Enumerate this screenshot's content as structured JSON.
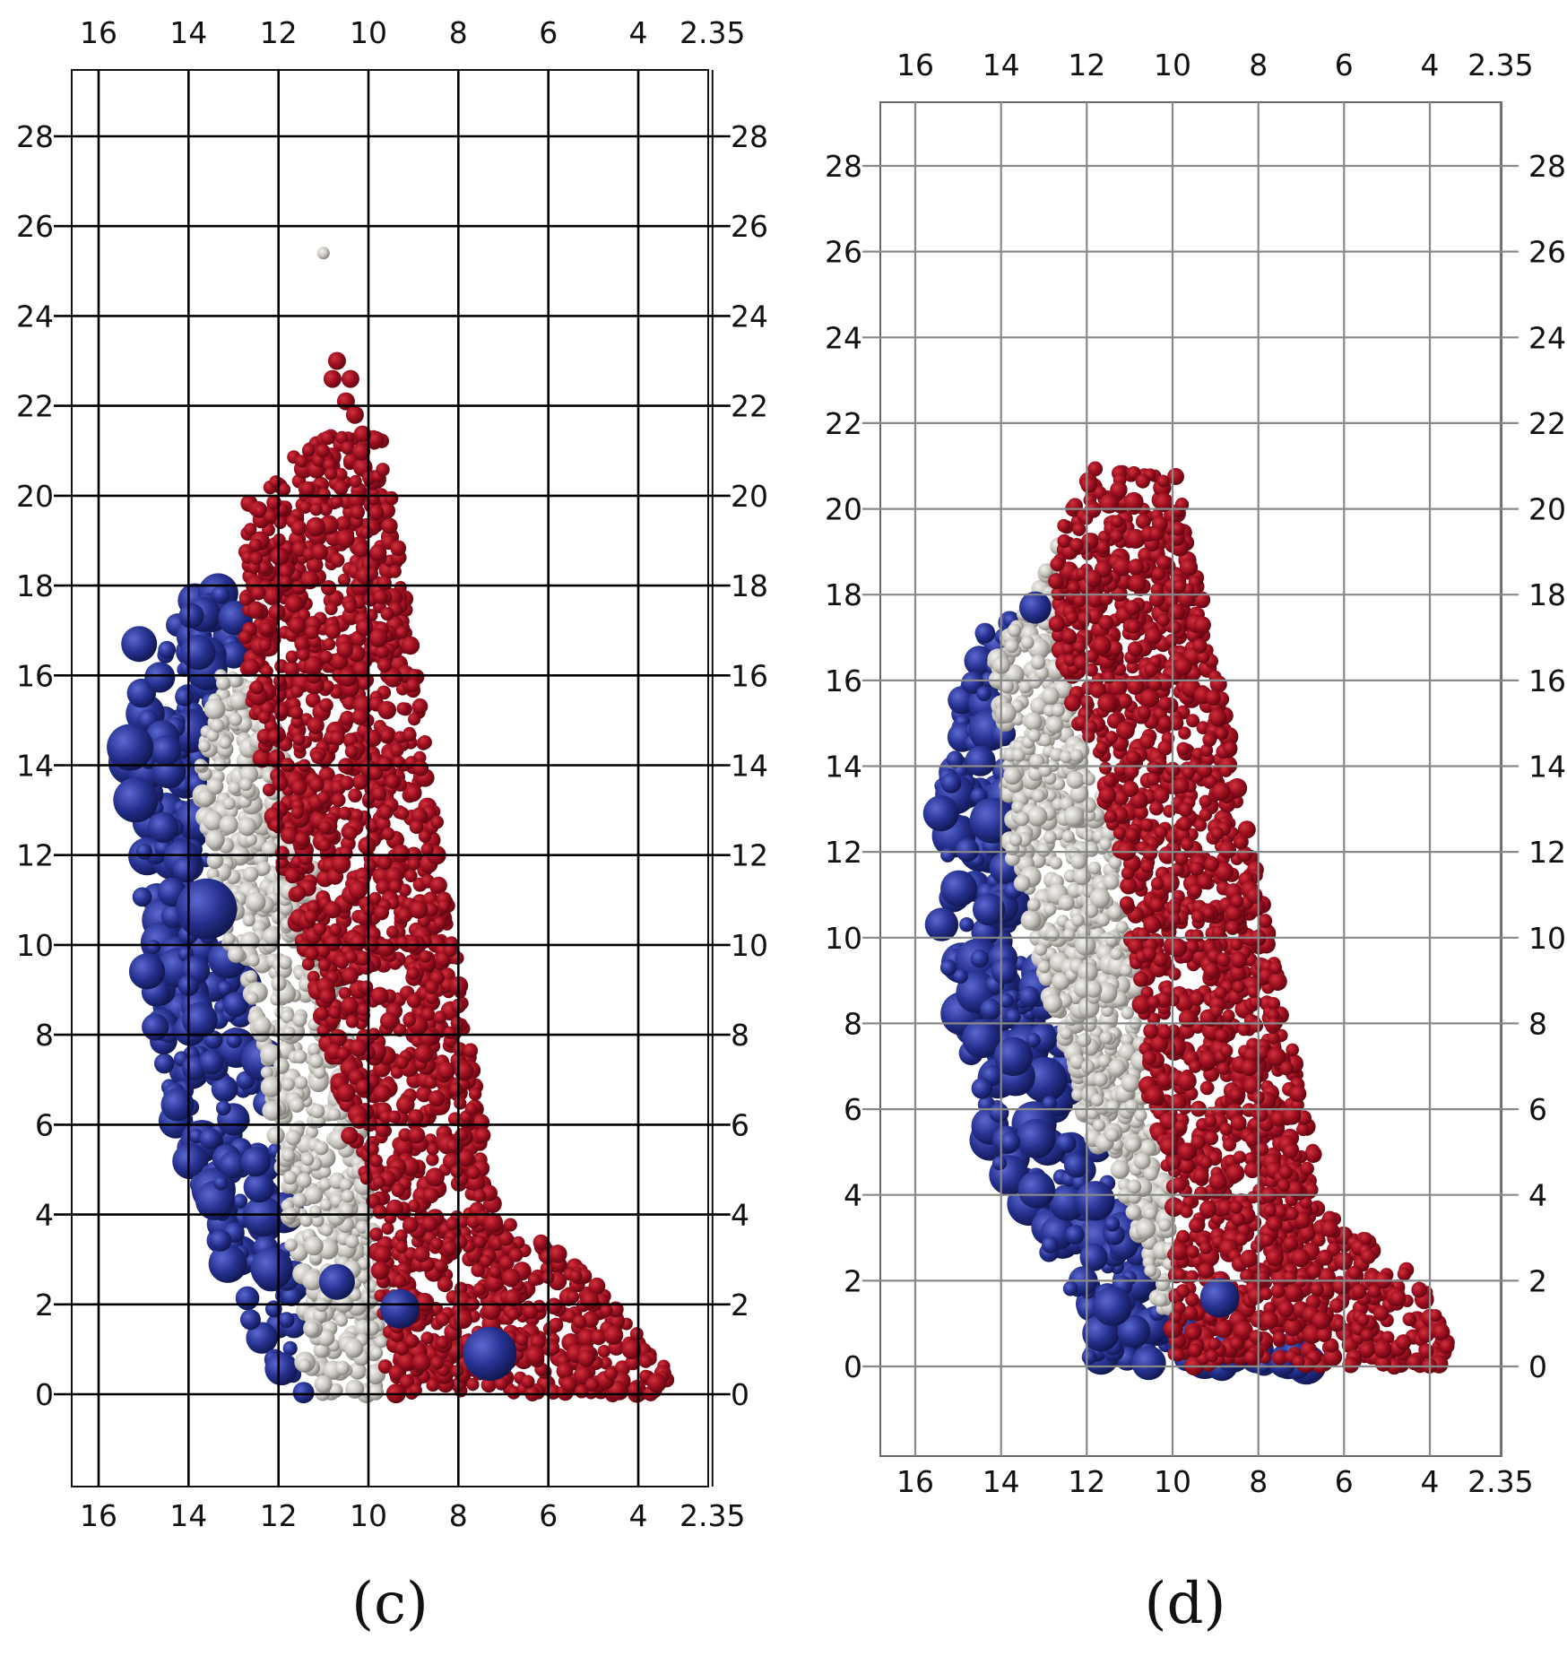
{
  "figure": {
    "panels": [
      {
        "id": "c",
        "label": "(c)",
        "x_ticks": [
          "16",
          "14",
          "12",
          "10",
          "8",
          "6",
          "4",
          "2.35"
        ],
        "y_ticks": [
          "0",
          "2",
          "4",
          "6",
          "8",
          "10",
          "12",
          "14",
          "16",
          "18",
          "20",
          "22",
          "24",
          "26",
          "28"
        ],
        "x_range": [
          2.35,
          17
        ],
        "y_range": [
          -2,
          29.5
        ],
        "grid_color": "#000000",
        "profile": {
          "red_zone": [
            [
              9.7,
              21.5
            ],
            [
              7.2,
              4
            ],
            [
              5.5,
              3
            ],
            [
              4,
              1.8
            ],
            [
              3.3,
              0.4
            ],
            [
              3.6,
              0
            ],
            [
              9.6,
              0
            ],
            [
              9.9,
              4
            ],
            [
              10.5,
              6
            ],
            [
              11,
              8
            ],
            [
              11.5,
              10
            ],
            [
              12,
              12
            ],
            [
              12.4,
              14
            ],
            [
              12.7,
              16
            ],
            [
              12.8,
              18
            ],
            [
              12.7,
              19.8
            ],
            [
              12.1,
              20.6
            ],
            [
              10.8,
              21.4
            ]
          ],
          "white_zone": [
            [
              12.3,
              16
            ],
            [
              11.8,
              14
            ],
            [
              11.2,
              12
            ],
            [
              10.9,
              10
            ],
            [
              10.5,
              8
            ],
            [
              10.1,
              6
            ],
            [
              9.9,
              4
            ],
            [
              9.6,
              2
            ],
            [
              9.7,
              0
            ],
            [
              11.4,
              0
            ],
            [
              11.6,
              2
            ],
            [
              11.8,
              4
            ],
            [
              12.4,
              8
            ],
            [
              13.1,
              10
            ],
            [
              13.6,
              12
            ],
            [
              13.8,
              14
            ],
            [
              13.3,
              16
            ]
          ],
          "blue_zone": [
            [
              13.3,
              18
            ],
            [
              12.5,
              16.5
            ],
            [
              13.3,
              16
            ],
            [
              13.8,
              14
            ],
            [
              13.6,
              12
            ],
            [
              13.1,
              10
            ],
            [
              12.4,
              8
            ],
            [
              11.8,
              4
            ],
            [
              11.6,
              2
            ],
            [
              11.4,
              0
            ],
            [
              12,
              0
            ],
            [
              12.8,
              2
            ],
            [
              13.6,
              4
            ],
            [
              14.3,
              6
            ],
            [
              14.8,
              8
            ],
            [
              15,
              10
            ],
            [
              15.1,
              12
            ],
            [
              15.3,
              14
            ],
            [
              15,
              16
            ],
            [
              14,
              18
            ]
          ]
        }
      },
      {
        "id": "d",
        "label": "(d)",
        "x_ticks": [
          "16",
          "14",
          "12",
          "10",
          "8",
          "6",
          "4",
          "2.35"
        ],
        "y_ticks": [
          "0",
          "2",
          "4",
          "6",
          "8",
          "10",
          "12",
          "14",
          "16",
          "18",
          "20",
          "22",
          "24",
          "26",
          "28"
        ],
        "x_range": [
          2.35,
          17
        ],
        "y_range": [
          -2,
          29.5
        ],
        "grid_color": "#888888",
        "profile": {
          "red_zone": [
            [
              11.8,
              21
            ],
            [
              9.9,
              20.8
            ],
            [
              6.5,
              4
            ],
            [
              5.5,
              3
            ],
            [
              4.2,
              2
            ],
            [
              3.6,
              1
            ],
            [
              3.6,
              0
            ],
            [
              10,
              0
            ],
            [
              10,
              4
            ],
            [
              10.6,
              6
            ],
            [
              10.7,
              8
            ],
            [
              11,
              10
            ],
            [
              11.2,
              12
            ],
            [
              11.9,
              14
            ],
            [
              12.5,
              16
            ],
            [
              12.8,
              18
            ],
            [
              12.6,
              19.5
            ]
          ],
          "white_zone": [
            [
              12.6,
              19.5
            ],
            [
              13.2,
              18
            ],
            [
              14.2,
              16.5
            ],
            [
              13.9,
              14.5
            ],
            [
              13.8,
              12
            ],
            [
              13.2,
              10
            ],
            [
              12.7,
              8
            ],
            [
              12.2,
              6
            ],
            [
              11.2,
              4
            ],
            [
              10.5,
              2
            ],
            [
              10.2,
              1
            ],
            [
              10,
              1
            ],
            [
              10,
              4
            ],
            [
              10.6,
              6
            ],
            [
              10.7,
              8
            ],
            [
              11,
              10
            ],
            [
              11.2,
              12
            ],
            [
              11.9,
              14
            ],
            [
              12.5,
              16
            ],
            [
              12.8,
              18
            ]
          ],
          "blue_zone": [
            [
              13,
              18.8
            ],
            [
              13.3,
              18
            ],
            [
              14.4,
              17.2
            ],
            [
              15,
              15.5
            ],
            [
              15.5,
              13
            ],
            [
              15.4,
              10
            ],
            [
              14.8,
              7.5
            ],
            [
              14.2,
              5
            ],
            [
              13.2,
              3
            ],
            [
              12.5,
              2
            ],
            [
              12,
              0.2
            ],
            [
              10,
              0
            ],
            [
              6.7,
              0
            ],
            [
              6.8,
              0.4
            ],
            [
              9,
              0.6
            ],
            [
              10.2,
              1
            ],
            [
              10.5,
              2
            ],
            [
              11.2,
              4
            ],
            [
              12.2,
              6
            ],
            [
              12.7,
              8
            ],
            [
              13.2,
              10
            ],
            [
              13.8,
              12
            ],
            [
              13.9,
              14.5
            ],
            [
              14.2,
              16.5
            ],
            [
              13.2,
              18
            ]
          ]
        }
      }
    ],
    "colors": {
      "red_particles": "#9b0e1f",
      "white_particles": "#c9c6c0",
      "blue_particles": "#26318f",
      "grid": "#000000",
      "frame": "#222222"
    }
  }
}
